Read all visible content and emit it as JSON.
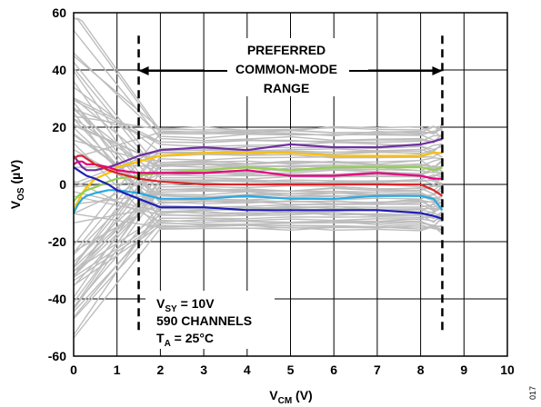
{
  "chart_data": {
    "type": "line",
    "title": "",
    "xlabel": {
      "main": "V",
      "sub": "CM",
      "unit": " (V)"
    },
    "ylabel": {
      "main": "V",
      "sub": "OS",
      "unit": " (µV)"
    },
    "xlim": [
      0,
      10
    ],
    "ylim": [
      -60,
      60
    ],
    "x_ticks": [
      0,
      1,
      2,
      3,
      4,
      5,
      6,
      7,
      8,
      9,
      10
    ],
    "y_ticks": [
      -60,
      -40,
      -20,
      0,
      20,
      40,
      60
    ],
    "grid": true,
    "preferred_range": {
      "x_start": 1.5,
      "x_end": 8.5,
      "label_lines": [
        "PREFERRED",
        "COMMON-MODE",
        "RANGE"
      ]
    },
    "conditions": [
      {
        "main": "V",
        "sub": "SY",
        "rest": " = 10V"
      },
      {
        "main": "590 CHANNELS",
        "sub": "",
        "rest": ""
      },
      {
        "main": "T",
        "sub": "A",
        "rest": " = 25°C"
      }
    ],
    "figure_id": "017",
    "x": [
      0,
      0.1,
      0.2,
      0.3,
      0.5,
      0.8,
      1,
      1.5,
      2,
      3,
      4,
      5,
      6,
      7,
      8,
      8.3,
      8.5
    ],
    "series": [
      {
        "color": "#7030a0",
        "values": [
          10,
          8,
          6,
          5,
          5,
          6,
          7,
          10,
          12,
          13,
          12,
          14,
          13,
          13,
          14,
          15,
          16
        ]
      },
      {
        "color": "#ffc000",
        "values": [
          -9,
          -6,
          -3,
          -1,
          2,
          4,
          6,
          8,
          10,
          11,
          11,
          11,
          10,
          10,
          10,
          11,
          11
        ]
      },
      {
        "color": "#92d050",
        "values": [
          -6,
          -4,
          -3,
          -2,
          -1,
          1,
          2,
          3,
          4,
          5,
          6,
          5,
          6,
          6,
          6,
          5,
          6
        ]
      },
      {
        "color": "#e6007e",
        "values": [
          7,
          8,
          8,
          7,
          7,
          6,
          5,
          4,
          4,
          4,
          5,
          3,
          3,
          4,
          3,
          2,
          2
        ]
      },
      {
        "color": "#d9262b",
        "values": [
          9,
          10,
          10,
          9,
          7,
          5,
          4,
          2,
          1,
          0,
          0,
          0,
          0,
          0,
          0,
          -2,
          -4
        ]
      },
      {
        "color": "#29a9e0",
        "values": [
          -10,
          -7,
          -5,
          -4,
          -3,
          -2,
          -2,
          -3,
          -5,
          -5,
          -4,
          -5,
          -5,
          -4,
          -4,
          -5,
          -9
        ]
      },
      {
        "color": "#1f20b5",
        "values": [
          6,
          5,
          4,
          3,
          2,
          0,
          -2,
          -5,
          -8,
          -8,
          -9,
          -9,
          -9,
          -9,
          -10,
          -11,
          -12
        ]
      }
    ],
    "background_band_note": "many gray traces (590 channels)"
  }
}
